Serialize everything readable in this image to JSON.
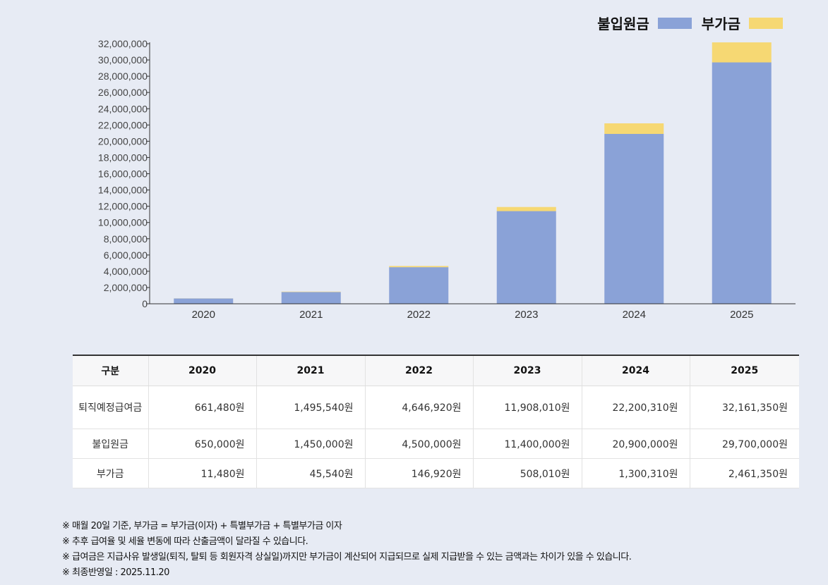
{
  "legend": {
    "principal_label": "불입원금",
    "extra_label": "부가금",
    "principal_color": "#8aa2d7",
    "extra_color": "#f6d873"
  },
  "chart_data": {
    "type": "bar",
    "stacked": true,
    "categories": [
      "2020",
      "2021",
      "2022",
      "2023",
      "2024",
      "2025"
    ],
    "series": [
      {
        "name": "불입원금",
        "values": [
          650000,
          1450000,
          4500000,
          11400000,
          20900000,
          29700000
        ],
        "color": "#8aa2d7"
      },
      {
        "name": "부가금",
        "values": [
          11480,
          45540,
          146920,
          508010,
          1300310,
          2461350
        ],
        "color": "#f6d873"
      }
    ],
    "ylim": [
      0,
      32000000
    ],
    "ytick_step": 2000000,
    "ytick_labels": [
      "0",
      "2,000,000",
      "4,000,000",
      "6,000,000",
      "8,000,000",
      "10,000,000",
      "12,000,000",
      "14,000,000",
      "16,000,000",
      "18,000,000",
      "20,000,000",
      "22,000,000",
      "24,000,000",
      "26,000,000",
      "28,000,000",
      "30,000,000",
      "32,000,000"
    ],
    "legend_position": "top-right",
    "grid": false
  },
  "table": {
    "header_label": "구분",
    "columns": [
      "2020",
      "2021",
      "2022",
      "2023",
      "2024",
      "2025"
    ],
    "rows": [
      {
        "label": "퇴직예정급여금",
        "values": [
          "661,480원",
          "1,495,540원",
          "4,646,920원",
          "11,908,010원",
          "22,200,310원",
          "32,161,350원"
        ]
      },
      {
        "label": "불입원금",
        "values": [
          "650,000원",
          "1,450,000원",
          "4,500,000원",
          "11,400,000원",
          "20,900,000원",
          "29,700,000원"
        ]
      },
      {
        "label": "부가금",
        "values": [
          "11,480원",
          "45,540원",
          "146,920원",
          "508,010원",
          "1,300,310원",
          "2,461,350원"
        ]
      }
    ]
  },
  "notes": [
    "※ 매월 20일 기준, 부가금 = 부가금(이자) + 특별부가금 + 특별부가금 이자",
    "※ 추후 급여율 및 세율 변동에 따라 산출금액이 달라질 수 있습니다.",
    "※ 급여금은 지급사유 발생일(퇴직, 탈퇴 등 회원자격 상실일)까지만 부가금이 계산되어 지급되므로 실제 지급받을 수 있는 금액과는 차이가 있을 수 있습니다.",
    "※ 최종반영일 : 2025.11.20"
  ]
}
